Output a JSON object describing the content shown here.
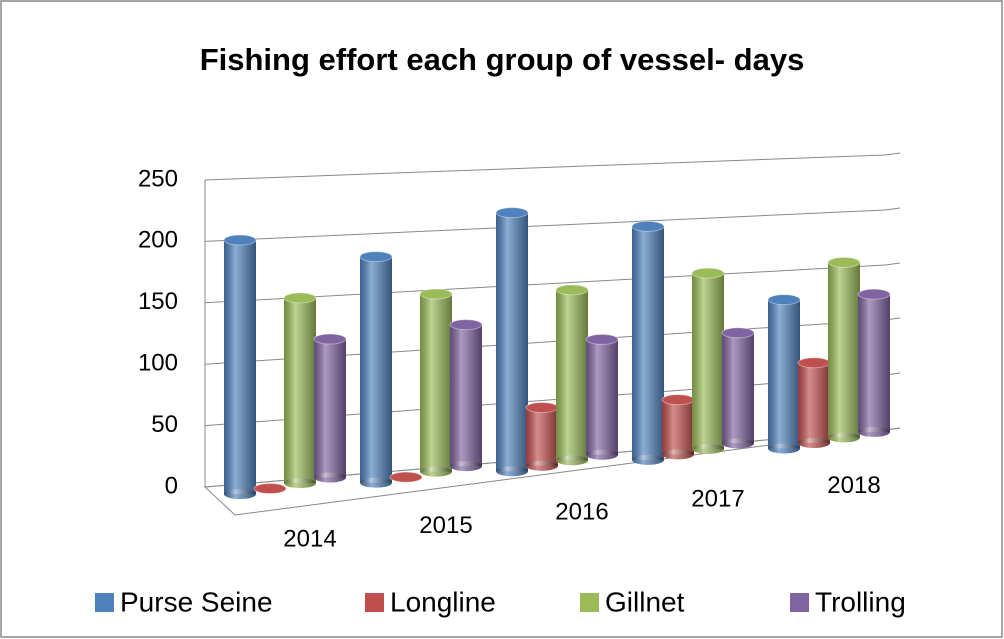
{
  "chart_data": {
    "type": "bar3d",
    "title": "Fishing effort each group of vessel- days",
    "categories": [
      "2014",
      "2015",
      "2016",
      "2017",
      "2018"
    ],
    "series": [
      {
        "name": "Purse Seine",
        "color": "#4f81bd",
        "values": [
          208,
          189,
          221,
          204,
          133
        ]
      },
      {
        "name": "Longline",
        "color": "#c0504d",
        "values": [
          0,
          0,
          50,
          48,
          72
        ]
      },
      {
        "name": "Gillnet",
        "color": "#9bbb59",
        "values": [
          153,
          150,
          147,
          155,
          158
        ]
      },
      {
        "name": "Trolling",
        "color": "#8064a2",
        "values": [
          115,
          120,
          100,
          98,
          125
        ]
      }
    ],
    "ylim": [
      0,
      250
    ],
    "yticks": [
      0,
      50,
      100,
      150,
      200,
      250
    ],
    "grid": true,
    "legend": "bottom"
  }
}
